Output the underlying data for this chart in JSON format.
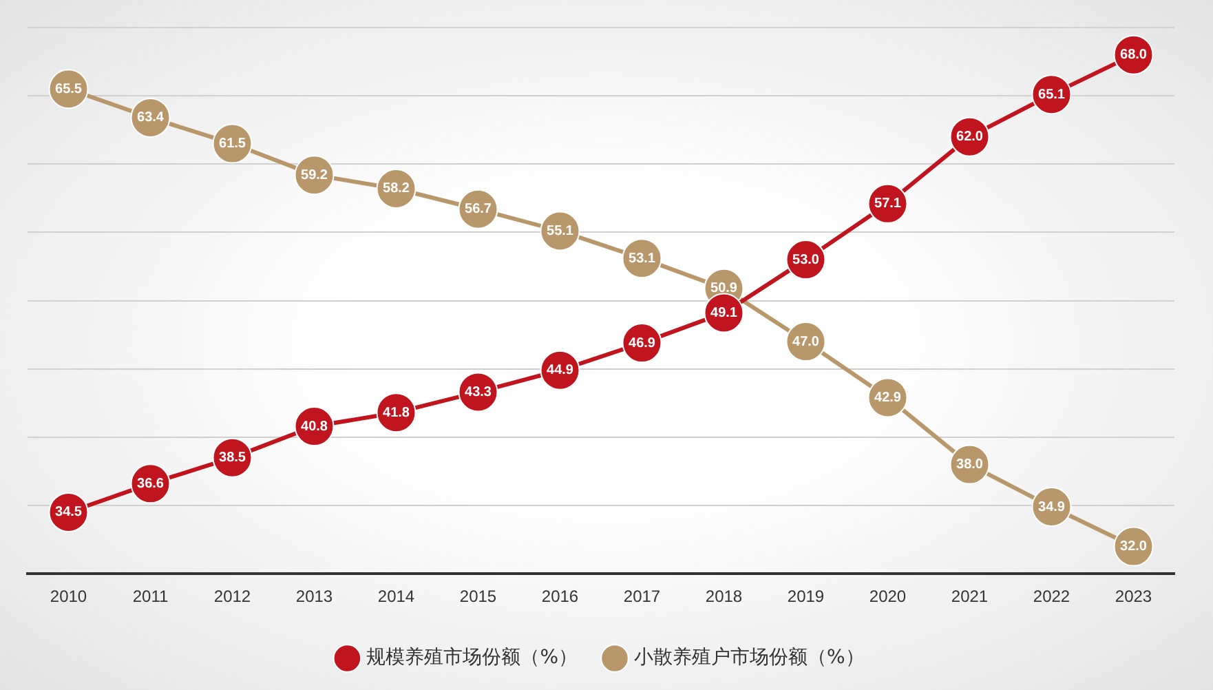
{
  "chart_data": {
    "type": "line",
    "categories": [
      "2010",
      "2011",
      "2012",
      "2013",
      "2014",
      "2015",
      "2016",
      "2017",
      "2018",
      "2019",
      "2020",
      "2021",
      "2022",
      "2023"
    ],
    "series": [
      {
        "name": "规模养殖市场份额（%）",
        "color": "#c0141e",
        "values": [
          34.5,
          36.6,
          38.5,
          40.8,
          41.8,
          43.3,
          44.9,
          46.9,
          49.1,
          53.0,
          57.1,
          62.0,
          65.1,
          68.0
        ],
        "value_labels": [
          "34.5",
          "36.6",
          "38.5",
          "40.8",
          "41.8",
          "43.3",
          "44.9",
          "46.9",
          "49.1",
          "53.0",
          "57.1",
          "62.0",
          "65.1",
          "68.0"
        ]
      },
      {
        "name": "小散养殖户市场份额（%）",
        "color": "#b8976b",
        "values": [
          65.5,
          63.4,
          61.5,
          59.2,
          58.2,
          56.7,
          55.1,
          53.1,
          50.9,
          47.0,
          42.9,
          38.0,
          34.9,
          32.0
        ],
        "value_labels": [
          "65.5",
          "63.4",
          "61.5",
          "59.2",
          "58.2",
          "56.7",
          "55.1",
          "53.1",
          "50.9",
          "47.0",
          "42.9",
          "38.0",
          "34.9",
          "32.0"
        ]
      }
    ],
    "ylim": [
      30,
      70
    ],
    "yticks": [
      {
        "value": 30,
        "label": null
      },
      {
        "value": 35,
        "label": null
      },
      {
        "value": 40,
        "label": null
      },
      {
        "value": 45,
        "label": null
      },
      {
        "value": 50,
        "label": null
      },
      {
        "value": 55,
        "label": null
      },
      {
        "value": 60,
        "label": null
      },
      {
        "value": 65,
        "label": null
      },
      {
        "value": 70,
        "label": null
      }
    ],
    "tick_labels": "x",
    "grid": "y",
    "legend": "bottom",
    "marker": "circle",
    "line_style": "solid"
  }
}
